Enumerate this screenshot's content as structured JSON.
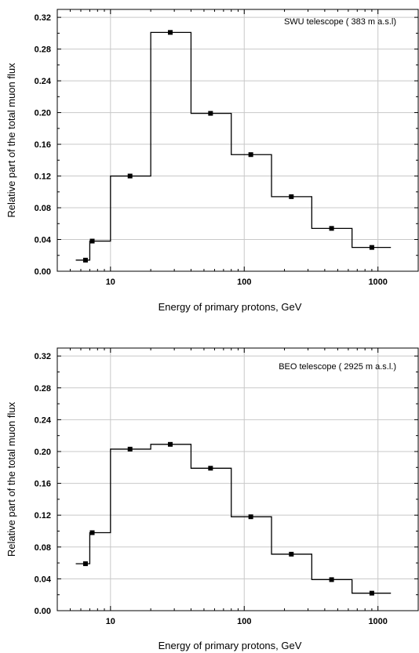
{
  "chart_data": [
    {
      "type": "line",
      "annotation": "SWU telescope ( 383 m a.s.l)",
      "xlabel": "Energy of primary protons, GeV",
      "ylabel": "Relative part of the total muon flux",
      "x_scale": "log",
      "xlim": [
        4,
        2000
      ],
      "ylim": [
        0,
        0.33
      ],
      "x_tick_labels": [
        "10",
        "100",
        "1000"
      ],
      "y_tick_labels": [
        "0.00",
        "0.04",
        "0.08",
        "0.12",
        "0.16",
        "0.20",
        "0.24",
        "0.28",
        "0.32"
      ],
      "grid": true,
      "step_edges": [
        5.5,
        7,
        10,
        20,
        40,
        80,
        160,
        320,
        640,
        1250
      ],
      "step_values": [
        0.014,
        0.038,
        0.12,
        0.301,
        0.199,
        0.147,
        0.094,
        0.054,
        0.03
      ],
      "points": [
        {
          "x": 6.5,
          "y": 0.014
        },
        {
          "x": 7.3,
          "y": 0.038
        },
        {
          "x": 14,
          "y": 0.12
        },
        {
          "x": 28,
          "y": 0.301
        },
        {
          "x": 56,
          "y": 0.199
        },
        {
          "x": 112,
          "y": 0.147
        },
        {
          "x": 225,
          "y": 0.094
        },
        {
          "x": 450,
          "y": 0.054
        },
        {
          "x": 900,
          "y": 0.03
        }
      ]
    },
    {
      "type": "line",
      "annotation": "BEO telescope ( 2925 m a.s.l.)",
      "xlabel": "Energy of primary protons, GeV",
      "ylabel": "Relative part of the total muon flux",
      "x_scale": "log",
      "xlim": [
        4,
        2000
      ],
      "ylim": [
        0,
        0.33
      ],
      "x_tick_labels": [
        "10",
        "100",
        "1000"
      ],
      "y_tick_labels": [
        "0.00",
        "0.04",
        "0.08",
        "0.12",
        "0.16",
        "0.20",
        "0.24",
        "0.28",
        "0.32"
      ],
      "grid": true,
      "step_edges": [
        5.5,
        7,
        10,
        20,
        40,
        80,
        160,
        320,
        640,
        1250
      ],
      "step_values": [
        0.059,
        0.098,
        0.203,
        0.209,
        0.179,
        0.118,
        0.071,
        0.039,
        0.022
      ],
      "points": [
        {
          "x": 6.5,
          "y": 0.059
        },
        {
          "x": 7.3,
          "y": 0.098
        },
        {
          "x": 14,
          "y": 0.203
        },
        {
          "x": 28,
          "y": 0.209
        },
        {
          "x": 56,
          "y": 0.179
        },
        {
          "x": 112,
          "y": 0.118
        },
        {
          "x": 225,
          "y": 0.071
        },
        {
          "x": 450,
          "y": 0.039
        },
        {
          "x": 900,
          "y": 0.022
        }
      ]
    }
  ]
}
